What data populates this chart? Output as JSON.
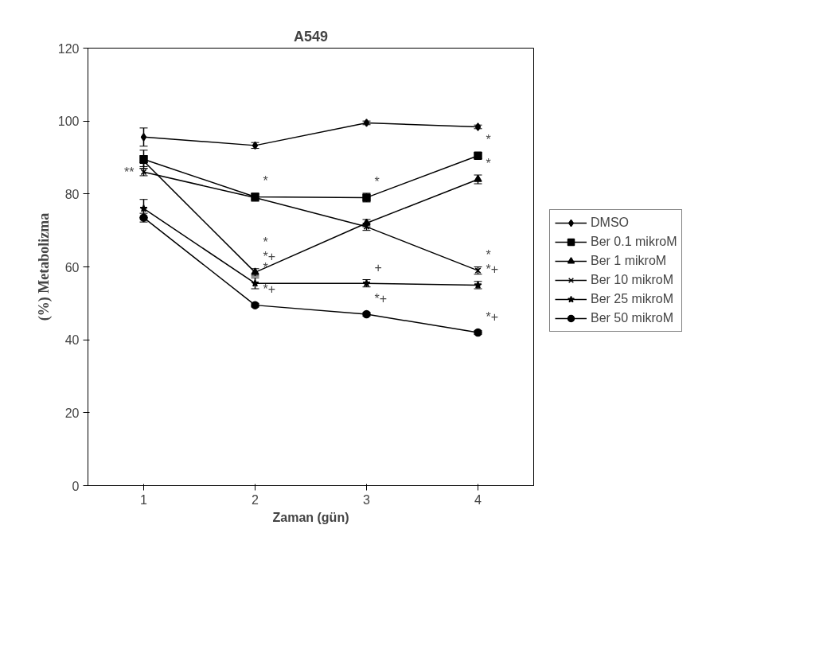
{
  "chart_data": {
    "type": "line",
    "title": "A549",
    "xlabel": "Zaman (gün)",
    "ylabel": "(%) Metabolizma",
    "categories": [
      "1",
      "2",
      "3",
      "4"
    ],
    "series": [
      {
        "name": "DMSO",
        "color": "#000000",
        "marker": "diamond",
        "values": [
          95.6,
          93.3,
          99.5,
          98.4
        ],
        "errors": [
          2.5,
          0.8,
          0.5,
          0.5
        ]
      },
      {
        "name": "Ber 0.1 mikroM",
        "color": "#000000",
        "marker": "square",
        "values": [
          89.5,
          79.2,
          79,
          90.5
        ],
        "errors": [
          2.5,
          1,
          1.2,
          0.8
        ]
      },
      {
        "name": "Ber 1 mikroM",
        "color": "#000000",
        "marker": "triangle",
        "values": [
          89,
          58.5,
          72,
          84
        ],
        "errors": [
          1.5,
          1,
          1,
          1.2
        ]
      },
      {
        "name": "Ber 10 mikroM",
        "color": "#000000",
        "marker": "cross",
        "values": [
          86,
          79,
          71,
          59
        ],
        "errors": [
          1,
          1,
          1,
          1
        ]
      },
      {
        "name": "Ber 25 mikroM",
        "color": "#000000",
        "marker": "star",
        "values": [
          76,
          55.5,
          55.5,
          55
        ],
        "errors": [
          2.5,
          1.5,
          1,
          1
        ]
      },
      {
        "name": "Ber 50 mikroM",
        "color": "#000000",
        "marker": "circle",
        "values": [
          73.5,
          49.5,
          47,
          42
        ],
        "errors": [
          1.2,
          0.5,
          0.5,
          0.5
        ]
      }
    ],
    "annotations": [
      {
        "text": "**",
        "x": "1",
        "y": 86
      },
      {
        "text": "*",
        "x": "2",
        "y": 79.2
      },
      {
        "text": "*+",
        "x": "2",
        "y": 58.5
      },
      {
        "text": "*",
        "x": "2",
        "y": 58.5
      },
      {
        "text": "*",
        "x": "2",
        "y": 55.5
      },
      {
        "text": "*+",
        "x": "2",
        "y": 49.5
      },
      {
        "text": "*",
        "x": "3",
        "y": 79
      },
      {
        "text": "+",
        "x": "3",
        "y": 55.5
      },
      {
        "text": "*+",
        "x": "3",
        "y": 47
      },
      {
        "text": "*",
        "x": "4",
        "y": 90.5
      },
      {
        "text": "*",
        "x": "4",
        "y": 84
      },
      {
        "text": "*",
        "x": "4",
        "y": 59
      },
      {
        "text": "*+",
        "x": "4",
        "y": 55
      },
      {
        "text": "*+",
        "x": "4",
        "y": 42
      }
    ],
    "ylim": [
      0,
      120
    ],
    "yticks": [
      0,
      20,
      40,
      60,
      80,
      100,
      120
    ],
    "grid": false,
    "legend": "right",
    "line_style": "solid"
  }
}
